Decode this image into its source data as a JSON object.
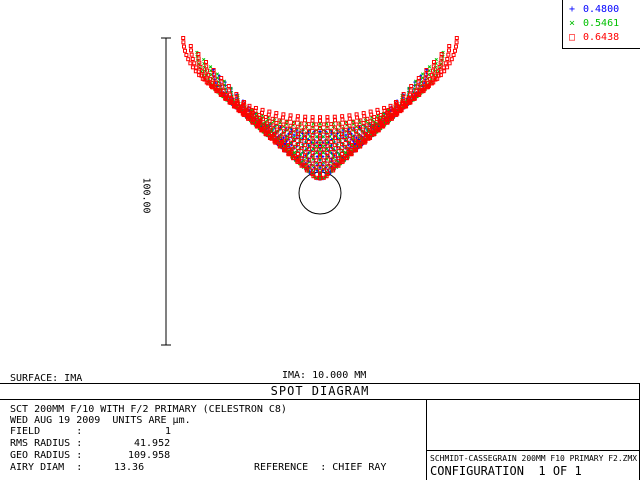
{
  "legend": [
    {
      "symbol": "+",
      "label": "0.4800",
      "color": "#0000ff"
    },
    {
      "symbol": "×",
      "label": "0.5461",
      "color": "#00c000"
    },
    {
      "symbol": "□",
      "label": "0.6438",
      "color": "#ff0000"
    }
  ],
  "scale_bar_label": "100.00",
  "surface_label": "SURFACE: IMA",
  "image_label": "IMA: 10.000 MM",
  "diagram_title": "SPOT DIAGRAM",
  "info": {
    "line1": "SCT 200MM F/10 WITH F/2 PRIMARY (CELESTRON C8)",
    "line2": "WED AUG 19 2009  UNITS ARE µm.",
    "field_label": "FIELD      :",
    "field_value": "1",
    "rms_label": "RMS RADIUS :",
    "rms_value": "41.952",
    "geo_label": "GEO RADIUS :",
    "geo_value": "109.958",
    "airy_label": "AIRY DIAM  :",
    "airy_value": "13.36",
    "reference": "REFERENCE  : CHIEF RAY"
  },
  "file_name": "SCHMIDT-CASSEGRAIN 200MM F10 PRIMARY F2.ZMX",
  "configuration": "CONFIGURATION  1 OF 1"
}
